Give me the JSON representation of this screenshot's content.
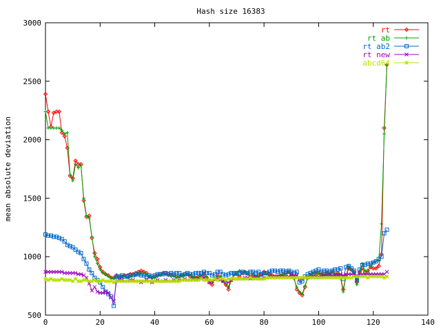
{
  "chart_data": {
    "type": "line",
    "title": "Hash size 16383",
    "xlabel": "",
    "ylabel": "mean absolute deviation",
    "xlim": [
      0,
      140
    ],
    "ylim": [
      500,
      3000
    ],
    "xticks": [
      0,
      20,
      40,
      60,
      80,
      100,
      120,
      140
    ],
    "yticks": [
      500,
      1000,
      1500,
      2000,
      2500,
      3000
    ],
    "grid": false,
    "legend_position": "top-right",
    "series": [
      {
        "name": "rt",
        "color": "#ff0000",
        "marker": "diamond",
        "x": [
          0,
          1,
          2,
          3,
          4,
          5,
          6,
          7,
          8,
          9,
          10,
          11,
          12,
          13,
          14,
          15,
          16,
          17,
          18,
          19,
          20,
          21,
          22,
          23,
          24,
          25,
          26,
          27,
          28,
          29,
          30,
          31,
          32,
          33,
          34,
          35,
          36,
          37,
          38,
          39,
          40,
          41,
          42,
          43,
          44,
          45,
          46,
          47,
          48,
          49,
          50,
          51,
          52,
          53,
          54,
          55,
          56,
          57,
          58,
          59,
          60,
          61,
          62,
          63,
          64,
          65,
          66,
          67,
          68,
          69,
          70,
          71,
          72,
          73,
          74,
          75,
          76,
          77,
          78,
          79,
          80,
          81,
          82,
          83,
          84,
          85,
          86,
          87,
          88,
          89,
          90,
          91,
          92,
          93,
          94,
          95,
          96,
          97,
          98,
          99,
          100,
          101,
          102,
          103,
          104,
          105,
          106,
          107,
          108,
          109,
          110,
          111,
          112,
          113,
          114,
          115,
          116,
          117,
          118,
          119,
          120,
          121,
          122,
          123,
          124,
          125
        ],
        "values": [
          2390,
          2240,
          2110,
          2230,
          2240,
          2240,
          2060,
          2030,
          1930,
          1690,
          1670,
          1820,
          1790,
          1790,
          1480,
          1340,
          1350,
          1160,
          1030,
          980,
          910,
          870,
          850,
          840,
          820,
          820,
          840,
          830,
          830,
          840,
          840,
          850,
          850,
          860,
          870,
          880,
          870,
          860,
          830,
          820,
          830,
          840,
          850,
          860,
          860,
          850,
          840,
          840,
          830,
          830,
          840,
          850,
          850,
          830,
          820,
          820,
          830,
          830,
          850,
          820,
          780,
          760,
          810,
          840,
          820,
          790,
          760,
          720,
          800,
          850,
          850,
          830,
          860,
          870,
          860,
          830,
          840,
          830,
          840,
          850,
          870,
          860,
          850,
          840,
          830,
          830,
          840,
          850,
          860,
          870,
          850,
          820,
          720,
          690,
          670,
          740,
          820,
          840,
          850,
          860,
          860,
          850,
          850,
          860,
          850,
          870,
          850,
          860,
          830,
          720,
          830,
          900,
          890,
          870,
          780,
          870,
          900,
          870,
          880,
          910,
          900,
          900,
          920,
          1020,
          2100,
          2640
        ]
      },
      {
        "name": "rt ab",
        "color": "#00a000",
        "marker": "plus",
        "x": [
          0,
          1,
          2,
          3,
          4,
          5,
          6,
          7,
          8,
          9,
          10,
          11,
          12,
          13,
          14,
          15,
          16,
          17,
          18,
          19,
          20,
          21,
          22,
          23,
          24,
          25,
          26,
          27,
          28,
          29,
          30,
          31,
          32,
          33,
          34,
          35,
          36,
          37,
          38,
          39,
          40,
          41,
          42,
          43,
          44,
          45,
          46,
          47,
          48,
          49,
          50,
          51,
          52,
          53,
          54,
          55,
          56,
          57,
          58,
          59,
          60,
          61,
          62,
          63,
          64,
          65,
          66,
          67,
          68,
          69,
          70,
          71,
          72,
          73,
          74,
          75,
          76,
          77,
          78,
          79,
          80,
          81,
          82,
          83,
          84,
          85,
          86,
          87,
          88,
          89,
          90,
          91,
          92,
          93,
          94,
          95,
          96,
          97,
          98,
          99,
          100,
          101,
          102,
          103,
          104,
          105,
          106,
          107,
          108,
          109,
          110,
          111,
          112,
          113,
          114,
          115,
          116,
          117,
          118,
          119,
          120,
          121,
          122,
          123,
          124,
          125
        ],
        "values": [
          2240,
          2100,
          2100,
          2100,
          2100,
          2100,
          2080,
          2050,
          2060,
          1700,
          1650,
          1790,
          1760,
          1780,
          1500,
          1350,
          1330,
          1170,
          1000,
          940,
          890,
          860,
          850,
          830,
          820,
          810,
          830,
          820,
          830,
          830,
          820,
          830,
          840,
          840,
          850,
          860,
          860,
          850,
          830,
          820,
          820,
          830,
          840,
          850,
          850,
          840,
          830,
          830,
          820,
          830,
          840,
          840,
          850,
          840,
          830,
          820,
          820,
          840,
          840,
          830,
          800,
          780,
          810,
          830,
          830,
          790,
          770,
          740,
          810,
          840,
          860,
          880,
          870,
          870,
          850,
          820,
          850,
          830,
          830,
          840,
          850,
          850,
          840,
          830,
          820,
          830,
          840,
          850,
          850,
          870,
          840,
          810,
          740,
          700,
          680,
          750,
          820,
          840,
          860,
          850,
          860,
          850,
          840,
          860,
          850,
          870,
          850,
          860,
          820,
          700,
          830,
          920,
          880,
          860,
          760,
          860,
          940,
          880,
          870,
          920,
          950,
          960,
          970,
          1280,
          2050,
          2640
        ]
      },
      {
        "name": "rt ab2",
        "color": "#0066cc",
        "marker": "square",
        "x": [
          0,
          1,
          2,
          3,
          4,
          5,
          6,
          7,
          8,
          9,
          10,
          11,
          12,
          13,
          14,
          15,
          16,
          17,
          18,
          19,
          20,
          21,
          22,
          23,
          24,
          25,
          26,
          27,
          28,
          29,
          30,
          31,
          32,
          33,
          34,
          35,
          36,
          37,
          38,
          39,
          40,
          41,
          42,
          43,
          44,
          45,
          46,
          47,
          48,
          49,
          50,
          51,
          52,
          53,
          54,
          55,
          56,
          57,
          58,
          59,
          60,
          61,
          62,
          63,
          64,
          65,
          66,
          67,
          68,
          69,
          70,
          71,
          72,
          73,
          74,
          75,
          76,
          77,
          78,
          79,
          80,
          81,
          82,
          83,
          84,
          85,
          86,
          87,
          88,
          89,
          90,
          91,
          92,
          93,
          94,
          95,
          96,
          97,
          98,
          99,
          100,
          101,
          102,
          103,
          104,
          105,
          106,
          107,
          108,
          109,
          110,
          111,
          112,
          113,
          114,
          115,
          116,
          117,
          118,
          119,
          120,
          121,
          122,
          123,
          124,
          125
        ],
        "values": [
          1190,
          1180,
          1180,
          1170,
          1170,
          1160,
          1150,
          1130,
          1100,
          1090,
          1080,
          1060,
          1040,
          1030,
          980,
          940,
          890,
          860,
          820,
          800,
          780,
          740,
          700,
          680,
          660,
          580,
          830,
          830,
          840,
          830,
          830,
          840,
          840,
          850,
          850,
          840,
          840,
          830,
          840,
          830,
          840,
          850,
          850,
          850,
          860,
          850,
          860,
          850,
          860,
          860,
          840,
          850,
          860,
          850,
          850,
          860,
          860,
          860,
          870,
          860,
          860,
          840,
          850,
          870,
          870,
          850,
          840,
          850,
          860,
          860,
          860,
          860,
          870,
          860,
          860,
          870,
          870,
          860,
          870,
          850,
          860,
          860,
          870,
          880,
          880,
          870,
          880,
          880,
          870,
          880,
          870,
          860,
          870,
          780,
          790,
          830,
          850,
          860,
          870,
          880,
          890,
          870,
          880,
          880,
          870,
          880,
          890,
          890,
          900,
          810,
          910,
          920,
          900,
          880,
          800,
          890,
          930,
          930,
          940,
          940,
          950,
          960,
          980,
          1000,
          1200,
          1230
        ]
      },
      {
        "name": "rt new",
        "color": "#a000c0",
        "marker": "cross",
        "x": [
          0,
          1,
          2,
          3,
          4,
          5,
          6,
          7,
          8,
          9,
          10,
          11,
          12,
          13,
          14,
          15,
          16,
          17,
          18,
          19,
          20,
          21,
          22,
          23,
          24,
          25,
          26,
          27,
          28,
          29,
          30,
          31,
          32,
          33,
          34,
          35,
          36,
          37,
          38,
          39,
          40,
          41,
          42,
          43,
          44,
          45,
          46,
          47,
          48,
          49,
          50,
          51,
          52,
          53,
          54,
          55,
          56,
          57,
          58,
          59,
          60,
          61,
          62,
          63,
          64,
          65,
          66,
          67,
          68,
          69,
          70,
          71,
          72,
          73,
          74,
          75,
          76,
          77,
          78,
          79,
          80,
          81,
          82,
          83,
          84,
          85,
          86,
          87,
          88,
          89,
          90,
          91,
          92,
          93,
          94,
          95,
          96,
          97,
          98,
          99,
          100,
          101,
          102,
          103,
          104,
          105,
          106,
          107,
          108,
          109,
          110,
          111,
          112,
          113,
          114,
          115,
          116,
          117,
          118,
          119,
          120,
          121,
          122,
          123,
          124,
          125
        ],
        "values": [
          870,
          870,
          870,
          870,
          870,
          870,
          870,
          860,
          860,
          860,
          860,
          860,
          850,
          850,
          840,
          820,
          770,
          710,
          740,
          700,
          690,
          690,
          700,
          690,
          650,
          620,
          790,
          800,
          800,
          790,
          790,
          800,
          800,
          790,
          790,
          780,
          790,
          800,
          790,
          780,
          790,
          800,
          790,
          790,
          800,
          790,
          790,
          800,
          790,
          800,
          800,
          810,
          800,
          800,
          810,
          800,
          810,
          810,
          820,
          800,
          780,
          790,
          810,
          810,
          800,
          790,
          790,
          780,
          800,
          810,
          810,
          810,
          810,
          820,
          820,
          810,
          820,
          820,
          820,
          810,
          820,
          820,
          830,
          830,
          830,
          830,
          830,
          830,
          830,
          830,
          840,
          840,
          840,
          810,
          810,
          820,
          820,
          820,
          830,
          830,
          830,
          830,
          840,
          840,
          840,
          840,
          840,
          840,
          850,
          840,
          850,
          850,
          850,
          850,
          840,
          850,
          850,
          850,
          850,
          850,
          850,
          850,
          850,
          850,
          850,
          870
        ]
      },
      {
        "name": "abcd64",
        "color": "#b8e000",
        "marker": "star",
        "x": [
          0,
          1,
          2,
          3,
          4,
          5,
          6,
          7,
          8,
          9,
          10,
          11,
          12,
          13,
          14,
          15,
          16,
          17,
          18,
          19,
          20,
          21,
          22,
          23,
          24,
          25,
          26,
          27,
          28,
          29,
          30,
          31,
          32,
          33,
          34,
          35,
          36,
          37,
          38,
          39,
          40,
          41,
          42,
          43,
          44,
          45,
          46,
          47,
          48,
          49,
          50,
          51,
          52,
          53,
          54,
          55,
          56,
          57,
          58,
          59,
          60,
          61,
          62,
          63,
          64,
          65,
          66,
          67,
          68,
          69,
          70,
          71,
          72,
          73,
          74,
          75,
          76,
          77,
          78,
          79,
          80,
          81,
          82,
          83,
          84,
          85,
          86,
          87,
          88,
          89,
          90,
          91,
          92,
          93,
          94,
          95,
          96,
          97,
          98,
          99,
          100,
          101,
          102,
          103,
          104,
          105,
          106,
          107,
          108,
          109,
          110,
          111,
          112,
          113,
          114,
          115,
          116,
          117,
          118,
          119,
          120,
          121,
          122,
          123,
          124,
          125
        ],
        "values": [
          810,
          800,
          810,
          800,
          800,
          800,
          810,
          800,
          800,
          800,
          790,
          810,
          790,
          790,
          800,
          800,
          790,
          790,
          800,
          790,
          790,
          800,
          790,
          790,
          790,
          780,
          790,
          790,
          790,
          790,
          790,
          790,
          790,
          790,
          790,
          790,
          790,
          790,
          790,
          790,
          790,
          790,
          790,
          790,
          790,
          790,
          790,
          790,
          790,
          790,
          800,
          800,
          800,
          800,
          800,
          800,
          800,
          810,
          800,
          800,
          800,
          800,
          810,
          800,
          810,
          810,
          800,
          810,
          810,
          810,
          810,
          810,
          810,
          810,
          810,
          820,
          810,
          810,
          810,
          810,
          810,
          820,
          820,
          820,
          820,
          820,
          820,
          820,
          820,
          820,
          820,
          820,
          820,
          820,
          820,
          820,
          820,
          820,
          820,
          820,
          820,
          820,
          820,
          820,
          820,
          820,
          820,
          820,
          820,
          820,
          820,
          820,
          820,
          830,
          830,
          830,
          830,
          830,
          820,
          830,
          830,
          830,
          830,
          830,
          820,
          830
        ]
      }
    ]
  }
}
